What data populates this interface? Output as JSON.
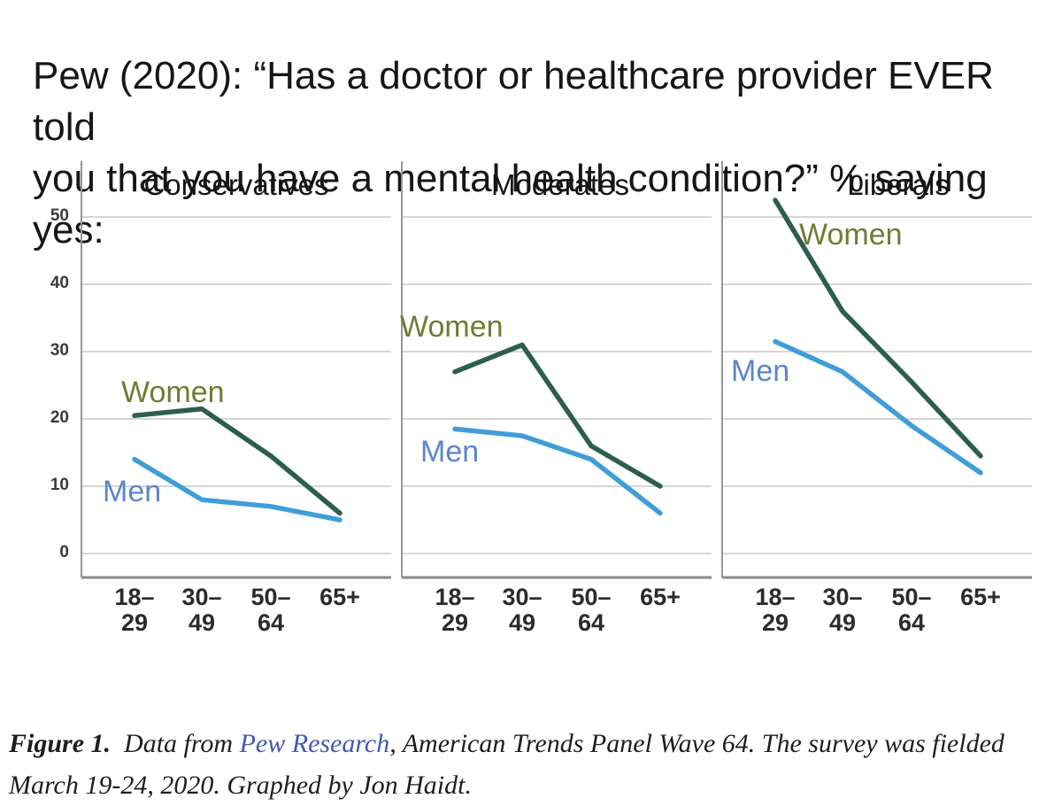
{
  "title": {
    "line1": "Pew (2020): “Has a doctor or healthcare provider EVER told",
    "line2": "you that you have a mental health condition?” % saying yes:"
  },
  "chart_data": {
    "type": "line",
    "categories": [
      "18–29",
      "30–49",
      "50–64",
      "65+"
    ],
    "category_labels_two_line": [
      [
        "18–",
        "29"
      ],
      [
        "30–",
        "49"
      ],
      [
        "50–",
        "64"
      ],
      [
        "65+",
        ""
      ]
    ],
    "yticks": [
      0,
      10,
      20,
      30,
      40,
      50
    ],
    "ylim": [
      0,
      55
    ],
    "grid": true,
    "legend": "inline-labels",
    "ylabel": "% saying yes",
    "panels": [
      {
        "label": "Conservatives",
        "series": [
          {
            "name": "Women",
            "values": [
              20.5,
              21.5,
              14.5,
              6
            ]
          },
          {
            "name": "Men",
            "values": [
              14,
              8,
              7,
              5
            ]
          }
        ]
      },
      {
        "label": "Moderates",
        "series": [
          {
            "name": "Women",
            "values": [
              27,
              31,
              16,
              10
            ]
          },
          {
            "name": "Men",
            "values": [
              18.5,
              17.5,
              14,
              6
            ]
          }
        ]
      },
      {
        "label": "Liberals",
        "series": [
          {
            "name": "Women",
            "values": [
              52.5,
              36,
              25.5,
              14.5
            ]
          },
          {
            "name": "Men",
            "values": [
              31.5,
              27,
              19,
              12
            ]
          }
        ]
      }
    ],
    "series_colors": {
      "Women": "#2c5e50",
      "Men": "#3f9ed8"
    },
    "series_label_colors": {
      "Women": "#6e7c33",
      "Men": "#5b86c9"
    },
    "grid_color": "#c9c9c9",
    "axis_color": "#979797"
  },
  "caption": {
    "figure_label": "Figure 1.",
    "pre_link": "  Data from ",
    "link_text": "Pew Research",
    "post_link": ", American Trends Panel Wave 64. The survey was fielded March 19-24, 2020. Graphed by Jon Haidt."
  }
}
